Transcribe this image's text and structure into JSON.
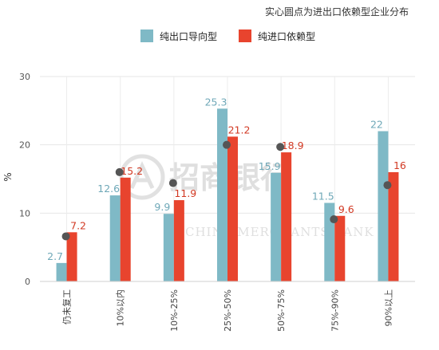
{
  "header": {
    "note": "实心圆点为进出口依赖型企业分布"
  },
  "watermark": {
    "name": "招商银行",
    "english": "CHINA MERCHANTS BANK"
  },
  "chart_data": {
    "type": "bar",
    "ylabel": "%",
    "ylim": [
      0,
      30
    ],
    "yticks": [
      0,
      10,
      20,
      30
    ],
    "categories": [
      "仍未复工",
      "10%以内",
      "10%-25%",
      "25%-50%",
      "50%-75%",
      "75%-90%",
      "90%以上"
    ],
    "series": [
      {
        "name": "纯出口导向型",
        "color": "#7fb9c6",
        "labelColor": "#6fa8b8",
        "values": [
          2.7,
          12.6,
          9.9,
          25.3,
          15.9,
          11.5,
          22
        ]
      },
      {
        "name": "纯进口依赖型",
        "color": "#e8442e",
        "labelColor": "#d23a24",
        "values": [
          7.2,
          15.2,
          11.9,
          21.2,
          18.9,
          9.6,
          16
        ]
      }
    ],
    "dots": {
      "name": "进出口依赖型",
      "color": "#555555",
      "values": [
        6.6,
        16.0,
        14.4,
        20.0,
        19.7,
        9.1,
        14.1
      ]
    },
    "legend_position": "top",
    "grid": true
  }
}
